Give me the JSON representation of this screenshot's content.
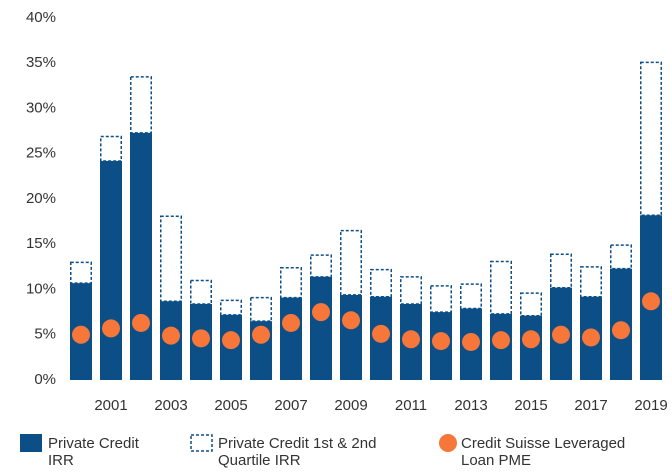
{
  "chart_data": {
    "type": "bar",
    "categories": [
      null,
      "2001",
      null,
      "2003",
      null,
      "2005",
      null,
      "2007",
      null,
      "2009",
      null,
      "2011",
      null,
      "2013",
      null,
      "2015",
      null,
      "2017",
      null,
      "2019"
    ],
    "series": [
      {
        "name": "Private Credit IRR",
        "color": "#0b4f86",
        "values": [
          10.7,
          24.2,
          27.3,
          8.7,
          8.4,
          7.2,
          6.5,
          9.1,
          11.4,
          9.4,
          9.2,
          8.4,
          7.5,
          7.9,
          7.3,
          7.1,
          10.2,
          9.2,
          12.3,
          18.2
        ]
      },
      {
        "name": "Private Credit 1st & 2nd Quartile IRR",
        "color": "#0b4f86",
        "values": [
          13.0,
          26.9,
          33.5,
          18.1,
          11.0,
          8.8,
          9.1,
          12.4,
          13.8,
          16.5,
          12.2,
          11.4,
          10.4,
          10.6,
          13.1,
          9.6,
          13.9,
          12.5,
          14.9,
          35.1
        ]
      },
      {
        "name": "Credit Suisse Leveraged Loan PME",
        "color": "#f7763a",
        "values": [
          5.0,
          5.7,
          6.3,
          4.9,
          4.6,
          4.4,
          5.0,
          6.3,
          7.5,
          6.6,
          5.1,
          4.5,
          4.3,
          4.2,
          4.4,
          4.5,
          5.0,
          4.7,
          5.5,
          8.7
        ]
      }
    ],
    "ylim": [
      0,
      40
    ],
    "yticks": [
      {
        "value": 0,
        "label": "0%"
      },
      {
        "value": 5,
        "label": "5%"
      },
      {
        "value": 10,
        "label": "10%"
      },
      {
        "value": 15,
        "label": "15%"
      },
      {
        "value": 20,
        "label": "20%"
      },
      {
        "value": 25,
        "label": "25%"
      },
      {
        "value": 30,
        "label": "30%"
      },
      {
        "value": 35,
        "label": "35%"
      },
      {
        "value": 40,
        "label": "40%"
      }
    ]
  }
}
